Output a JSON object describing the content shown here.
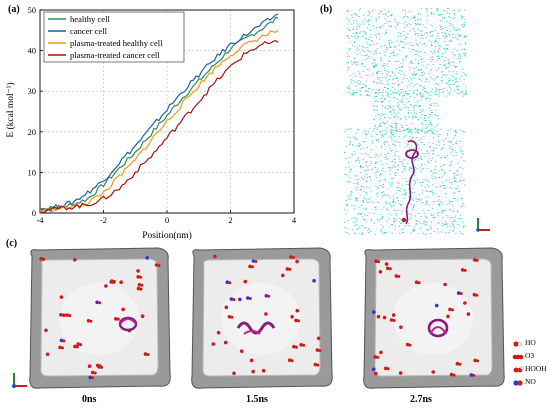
{
  "panel_labels": {
    "a": "(a)",
    "b": "(b)",
    "c": "(c)"
  },
  "colors": {
    "healthy": "#2e8b57",
    "cancer": "#1f5fa8",
    "pt_healthy": "#f39c12",
    "pt_cancer": "#a01616",
    "water": "#2ec4c4",
    "peptide": "#8a1a7a",
    "box": "#8a8a8a"
  },
  "chart_data": {
    "type": "line",
    "xlabel": "Position(nm)",
    "ylabel": "E (kcal mol⁻¹)",
    "xlim": [
      -4,
      4
    ],
    "ylim": [
      0,
      50
    ],
    "x_ticks": [
      "-4",
      "-2",
      "0",
      "2",
      "4"
    ],
    "y_ticks": [
      "0",
      "10",
      "20",
      "30",
      "40",
      "50"
    ],
    "grid": true,
    "legend_position": "top-left",
    "series": [
      {
        "name": "healthy cell",
        "color": "#2e8b57",
        "x": [
          -4,
          -3.5,
          -3,
          -2.5,
          -2,
          -1.5,
          -1,
          -0.5,
          0,
          0.5,
          1,
          1.5,
          2,
          2.5,
          3,
          3.5
        ],
        "y": [
          1,
          1.2,
          2,
          3.5,
          7,
          11,
          15,
          19.5,
          24,
          28.5,
          32.5,
          36.5,
          40.5,
          43,
          45.5,
          48
        ]
      },
      {
        "name": "cancer cell",
        "color": "#1f5fa8",
        "x": [
          -4,
          -3.5,
          -3,
          -2.5,
          -2,
          -1.5,
          -1,
          -0.5,
          0,
          0.5,
          1,
          1.5,
          2,
          2.5,
          3,
          3.5
        ],
        "y": [
          1,
          1.5,
          2.5,
          5,
          8,
          12.5,
          16.5,
          21,
          25.5,
          30,
          34,
          38,
          41.5,
          44,
          46.5,
          49
        ]
      },
      {
        "name": "plasma-treated healthy cell",
        "color": "#f39c12",
        "x": [
          -4,
          -3.5,
          -3,
          -2.5,
          -2,
          -1.5,
          -1,
          -0.5,
          0,
          0.5,
          1,
          1.5,
          2,
          2.5,
          3,
          3.5
        ],
        "y": [
          0.5,
          1,
          1.5,
          2.5,
          5,
          9,
          13,
          18,
          22.5,
          27,
          31.5,
          35.5,
          39,
          41.5,
          43.5,
          45
        ]
      },
      {
        "name": "plasma-treated cancer cell",
        "color": "#a01616",
        "x": [
          -4,
          -3.5,
          -3,
          -2.5,
          -2,
          -1.5,
          -1,
          -0.5,
          0,
          0.5,
          1,
          1.5,
          2,
          2.5,
          3,
          3.5
        ],
        "y": [
          0.5,
          1,
          1.5,
          2,
          3.5,
          6,
          10,
          14,
          18.5,
          23,
          27.5,
          32,
          36,
          39.5,
          41.5,
          42
        ]
      }
    ]
  },
  "snapshots": [
    {
      "time": "0ns"
    },
    {
      "time": "1.5ns"
    },
    {
      "time": "2.7ns"
    }
  ],
  "species_legend": [
    {
      "name": "HO"
    },
    {
      "name": "O3"
    },
    {
      "name": "HOOH"
    },
    {
      "name": "NO"
    }
  ]
}
